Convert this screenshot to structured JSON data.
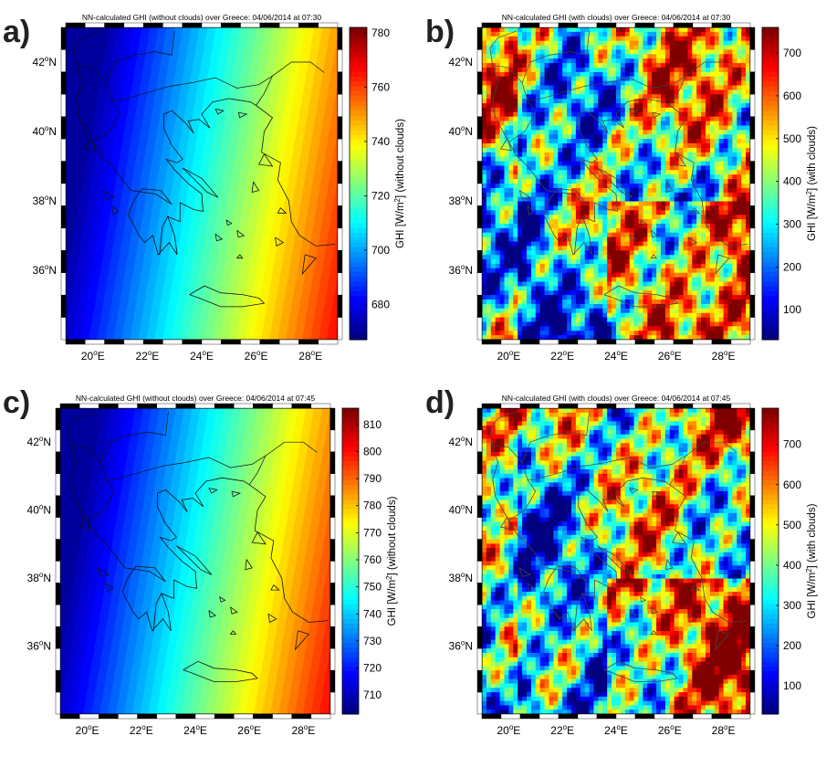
{
  "panels": [
    {
      "letter": "a)",
      "title": "NN-calculated GHI (without clouds) over Greece: 04/06/2014 at 07:30",
      "field": "clearsky",
      "colorbar_label": "GHI [W/m²] (without clouds)",
      "cbar_ticks": [
        "680",
        "700",
        "720",
        "740",
        "760",
        "780"
      ],
      "cbar_values": [
        680,
        700,
        720,
        740,
        760,
        780
      ],
      "cbar_range": [
        667,
        782
      ]
    },
    {
      "letter": "b)",
      "title": "NN-calculated GHI (with clouds) over Greece: 04/06/2014 at 07:30",
      "field": "cloudy",
      "colorbar_label": "GHI [W/m²] (with clouds)",
      "cbar_ticks": [
        "100",
        "200",
        "300",
        "400",
        "500",
        "600",
        "700"
      ],
      "cbar_values": [
        100,
        200,
        300,
        400,
        500,
        600,
        700
      ],
      "cbar_range": [
        30,
        760
      ]
    },
    {
      "letter": "c)",
      "title": "NN-calculated GHI (without clouds) over Greece: 04/06/2014 at 07:45",
      "field": "clearsky",
      "colorbar_label": "GHI [W/m²] (without clouds)",
      "cbar_ticks": [
        "710",
        "720",
        "730",
        "740",
        "750",
        "760",
        "770",
        "780",
        "790",
        "800",
        "810"
      ],
      "cbar_values": [
        710,
        720,
        730,
        740,
        750,
        760,
        770,
        780,
        790,
        800,
        810
      ],
      "cbar_range": [
        703,
        816
      ]
    },
    {
      "letter": "d)",
      "title": "NN-calculated GHI (with clouds) over Greece: 04/06/2014 at 07:45",
      "field": "cloudy",
      "colorbar_label": "GHI [W/m²] (with clouds)",
      "cbar_ticks": [
        "100",
        "200",
        "300",
        "400",
        "500",
        "600",
        "700"
      ],
      "cbar_values": [
        100,
        200,
        300,
        400,
        500,
        600,
        700
      ],
      "cbar_range": [
        30,
        790
      ]
    }
  ],
  "lat_ticks": [
    "42°N",
    "40°N",
    "38°N",
    "36°N"
  ],
  "lat_values": [
    42,
    40,
    38,
    36
  ],
  "lon_ticks": [
    "20°E",
    "22°E",
    "24°E",
    "26°E",
    "28°E"
  ],
  "lon_values": [
    20,
    22,
    24,
    26,
    28
  ],
  "map_extent": {
    "lon": [
      19,
      29
    ],
    "lat": [
      34,
      43
    ]
  },
  "colormap": "jet"
}
